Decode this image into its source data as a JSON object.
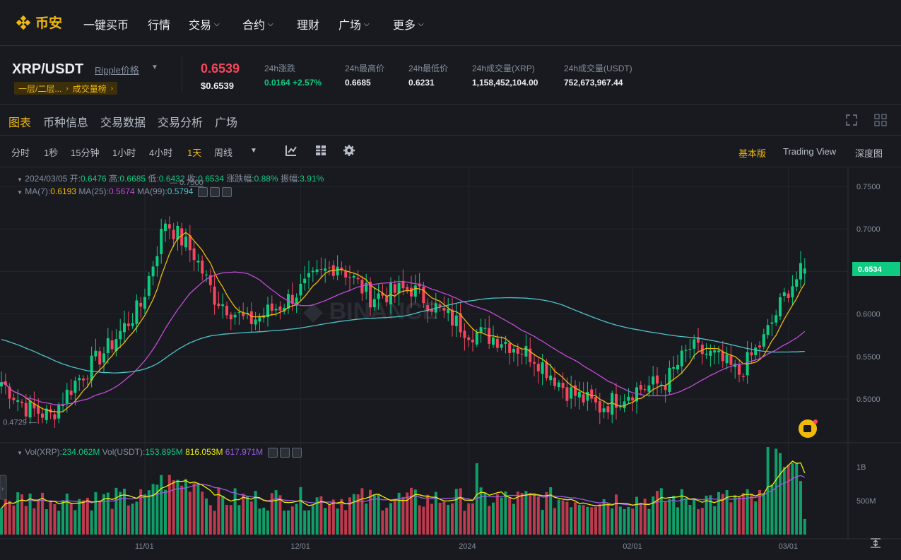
{
  "nav": {
    "brand": "币安",
    "items": [
      {
        "label": "一键买币",
        "dropdown": false
      },
      {
        "label": "行情",
        "dropdown": false
      },
      {
        "label": "交易",
        "dropdown": true
      },
      {
        "label": "合约",
        "dropdown": true
      },
      {
        "label": "理财",
        "dropdown": false
      },
      {
        "label": "广场",
        "dropdown": true
      },
      {
        "label": "更多",
        "dropdown": true
      }
    ]
  },
  "ticker": {
    "pair": "XRP/USDT",
    "link": "Ripple价格",
    "tag1": "一层/二层...",
    "tag2": "成交量榜",
    "last_price": "0.6539",
    "last_price_usd": "$0.6539",
    "stats": [
      {
        "label": "24h涨跌",
        "value": "0.0164 +2.57%",
        "color": "#0ecb81"
      },
      {
        "label": "24h最高价",
        "value": "0.6685",
        "color": "#eaecef"
      },
      {
        "label": "24h最低价",
        "value": "0.6231",
        "color": "#eaecef"
      },
      {
        "label": "24h成交量(XRP)",
        "value": "1,158,452,104.00",
        "color": "#eaecef"
      },
      {
        "label": "24h成交量(USDT)",
        "value": "752,673,967.44",
        "color": "#eaecef"
      }
    ]
  },
  "tabs": [
    "图表",
    "币种信息",
    "交易数据",
    "交易分析",
    "广场"
  ],
  "toolbar": {
    "timeframes": [
      "分时",
      "1秒",
      "15分钟",
      "1小时",
      "4小时",
      "1天",
      "周线"
    ],
    "active_timeframe": "1天",
    "views": [
      "基本版",
      "Trading View",
      "深度图"
    ],
    "active_view": "基本版"
  },
  "legend": {
    "date": "2024/03/05",
    "open_label": "开:",
    "open": "0.6476",
    "high_label": "高:",
    "high": "0.6685",
    "low_label": "低:",
    "low": "0.6432",
    "close_label": "收:",
    "close": "0.6534",
    "chg_label": "涨跌幅:",
    "chg": "0.88%",
    "amp_label": "振幅:",
    "amp": "3.91%",
    "ma7_label": "MA(7):",
    "ma7": "0.6193",
    "ma25_label": "MA(25):",
    "ma25": "0.5674",
    "ma99_label": "MA(99):",
    "ma99": "0.5794",
    "vol_xrp_label": "Vol(XRP):",
    "vol_xrp": "234.062M",
    "vol_usdt_label": "Vol(USDT):",
    "vol_usdt": "153.895M",
    "vol_ma1": "816.053M",
    "vol_ma2": "617.971M"
  },
  "chart_data": {
    "type": "candlestick",
    "price_axis_ticks": [
      "0.7500",
      "0.7000",
      "0.6500",
      "0.6000",
      "0.5500",
      "0.5000"
    ],
    "price_tick_values": [
      0.75,
      0.7,
      0.65,
      0.6,
      0.55,
      0.5
    ],
    "current_price_label": "0.6534",
    "current_price": 0.6534,
    "max_marker": "0.7500",
    "min_marker": "0.4729",
    "volume_axis_ticks": [
      "1B",
      "500M"
    ],
    "date_labels": [
      "11/01",
      "12/01",
      "2024",
      "02/01",
      "03/01"
    ],
    "colors": {
      "up": "#0ecb81",
      "down": "#f6465d",
      "ma7": "#f0b90b",
      "ma25": "#c34bd6",
      "ma99": "#4fc3c9",
      "vol_ma1": "#f0f000",
      "vol_ma2": "#9b5de5"
    },
    "key_points": [
      {
        "i": 0,
        "close": 0.52
      },
      {
        "i": 6,
        "close": 0.49
      },
      {
        "i": 12,
        "close": 0.48
      },
      {
        "i": 18,
        "close": 0.52
      },
      {
        "i": 26,
        "close": 0.56
      },
      {
        "i": 34,
        "close": 0.61
      },
      {
        "i": 40,
        "close": 0.71
      },
      {
        "i": 47,
        "close": 0.67
      },
      {
        "i": 52,
        "close": 0.62
      },
      {
        "i": 60,
        "close": 0.59
      },
      {
        "i": 68,
        "close": 0.61
      },
      {
        "i": 76,
        "close": 0.64
      },
      {
        "i": 82,
        "close": 0.66
      },
      {
        "i": 90,
        "close": 0.62
      },
      {
        "i": 100,
        "close": 0.63
      },
      {
        "i": 108,
        "close": 0.6
      },
      {
        "i": 114,
        "close": 0.58
      },
      {
        "i": 122,
        "close": 0.57
      },
      {
        "i": 130,
        "close": 0.55
      },
      {
        "i": 138,
        "close": 0.51
      },
      {
        "i": 146,
        "close": 0.49
      },
      {
        "i": 154,
        "close": 0.51
      },
      {
        "i": 162,
        "close": 0.52
      },
      {
        "i": 168,
        "close": 0.56
      },
      {
        "i": 174,
        "close": 0.55
      },
      {
        "i": 180,
        "close": 0.53
      },
      {
        "i": 186,
        "close": 0.57
      },
      {
        "i": 192,
        "close": 0.63
      },
      {
        "i": 196,
        "close": 0.6534
      }
    ]
  }
}
